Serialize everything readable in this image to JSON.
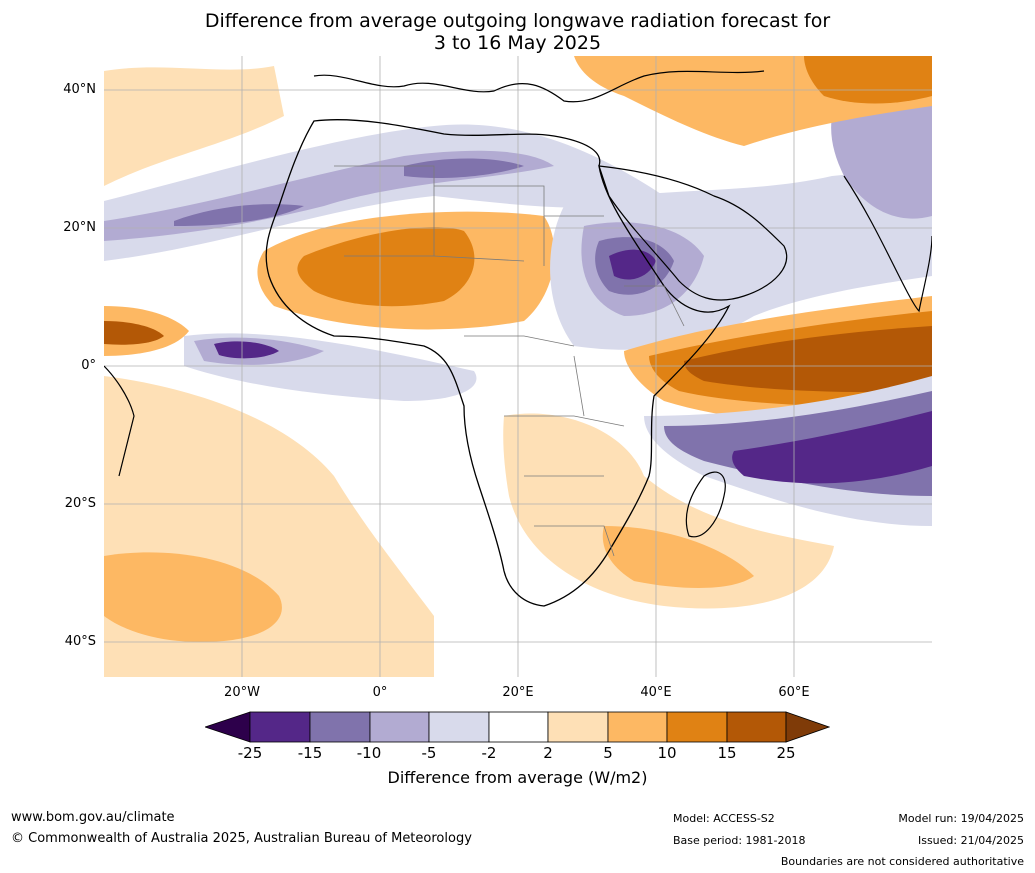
{
  "title": {
    "line1": "Difference from average outgoing longwave radiation forecast for",
    "line2": "3 to 16 May 2025"
  },
  "map": {
    "lat_labels": [
      "40°N",
      "20°N",
      "0°",
      "20°S",
      "40°S"
    ],
    "lon_labels": [
      "20°W",
      "0°",
      "20°E",
      "40°E",
      "60°E"
    ],
    "extent": {
      "lon_min": -40,
      "lon_max": 80,
      "lat_min": -45,
      "lat_max": 45
    },
    "gridlines": true
  },
  "colorbar": {
    "ticks": [
      "-25",
      "-15",
      "-10",
      "-5",
      "-2",
      "2",
      "5",
      "10",
      "15",
      "25"
    ],
    "label": "Difference from average (W/m2)",
    "colors": {
      "lt_minus25": "#2d004b",
      "minus25_minus15": "#542788",
      "minus15_minus10": "#8073ac",
      "minus10_minus5": "#b2abd2",
      "minus5_minus2": "#d8daeb",
      "minus2_2": "#ffffff",
      "p2_5": "#fee0b6",
      "p5_10": "#fdb863",
      "p10_15": "#e08214",
      "p15_25": "#b35806",
      "gt25": "#7f3b08"
    }
  },
  "footer": {
    "website": "www.bom.gov.au/climate",
    "copyright": "© Commonwealth of Australia 2025, Australian Bureau of Meteorology",
    "model": "Model: ACCESS-S2",
    "base_period": "Base period: 1981-2018",
    "model_run": "Model run: 19/04/2025",
    "issued": "Issued: 21/04/2025",
    "disclaimer": "Boundaries are not considered authoritative"
  }
}
